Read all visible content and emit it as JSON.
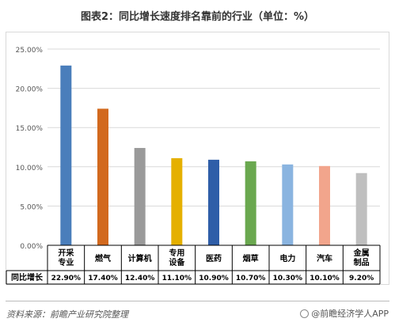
{
  "title": "图表2：同比增长速度排名靠前的行业（单位：%）",
  "footer": {
    "source": "资料来源：前瞻产业研究院整理",
    "brand": "@前瞻经济学人APP",
    "brand_icon": "logo-icon"
  },
  "chart_data": {
    "type": "bar",
    "title": "图表2：同比增长速度排名靠前的行业（单位：%）",
    "categories": [
      "开采专业",
      "燃气",
      "计算机",
      "专用设备",
      "医药",
      "烟草",
      "电力",
      "汽车",
      "金属制品"
    ],
    "series": [
      {
        "name": "同比增长",
        "values": [
          22.9,
          17.4,
          12.4,
          11.1,
          10.9,
          10.7,
          10.3,
          10.1,
          9.2
        ],
        "labels": [
          "22.90%",
          "17.40%",
          "12.40%",
          "11.10%",
          "10.90%",
          "10.70%",
          "10.30%",
          "10.10%",
          "9.20%"
        ]
      }
    ],
    "colors": [
      "#4a7ebb",
      "#d2691e",
      "#9a9a9a",
      "#e5b000",
      "#2f5ea8",
      "#6aa84f",
      "#8ab4e0",
      "#f2a58c",
      "#bfbfbf"
    ],
    "yticks": [
      "0.00%",
      "5.00%",
      "10.00%",
      "15.00%",
      "20.00%",
      "25.00%"
    ],
    "ylim": [
      0,
      25
    ],
    "grid": true,
    "data_table": true,
    "xlabel": "",
    "ylabel": ""
  }
}
